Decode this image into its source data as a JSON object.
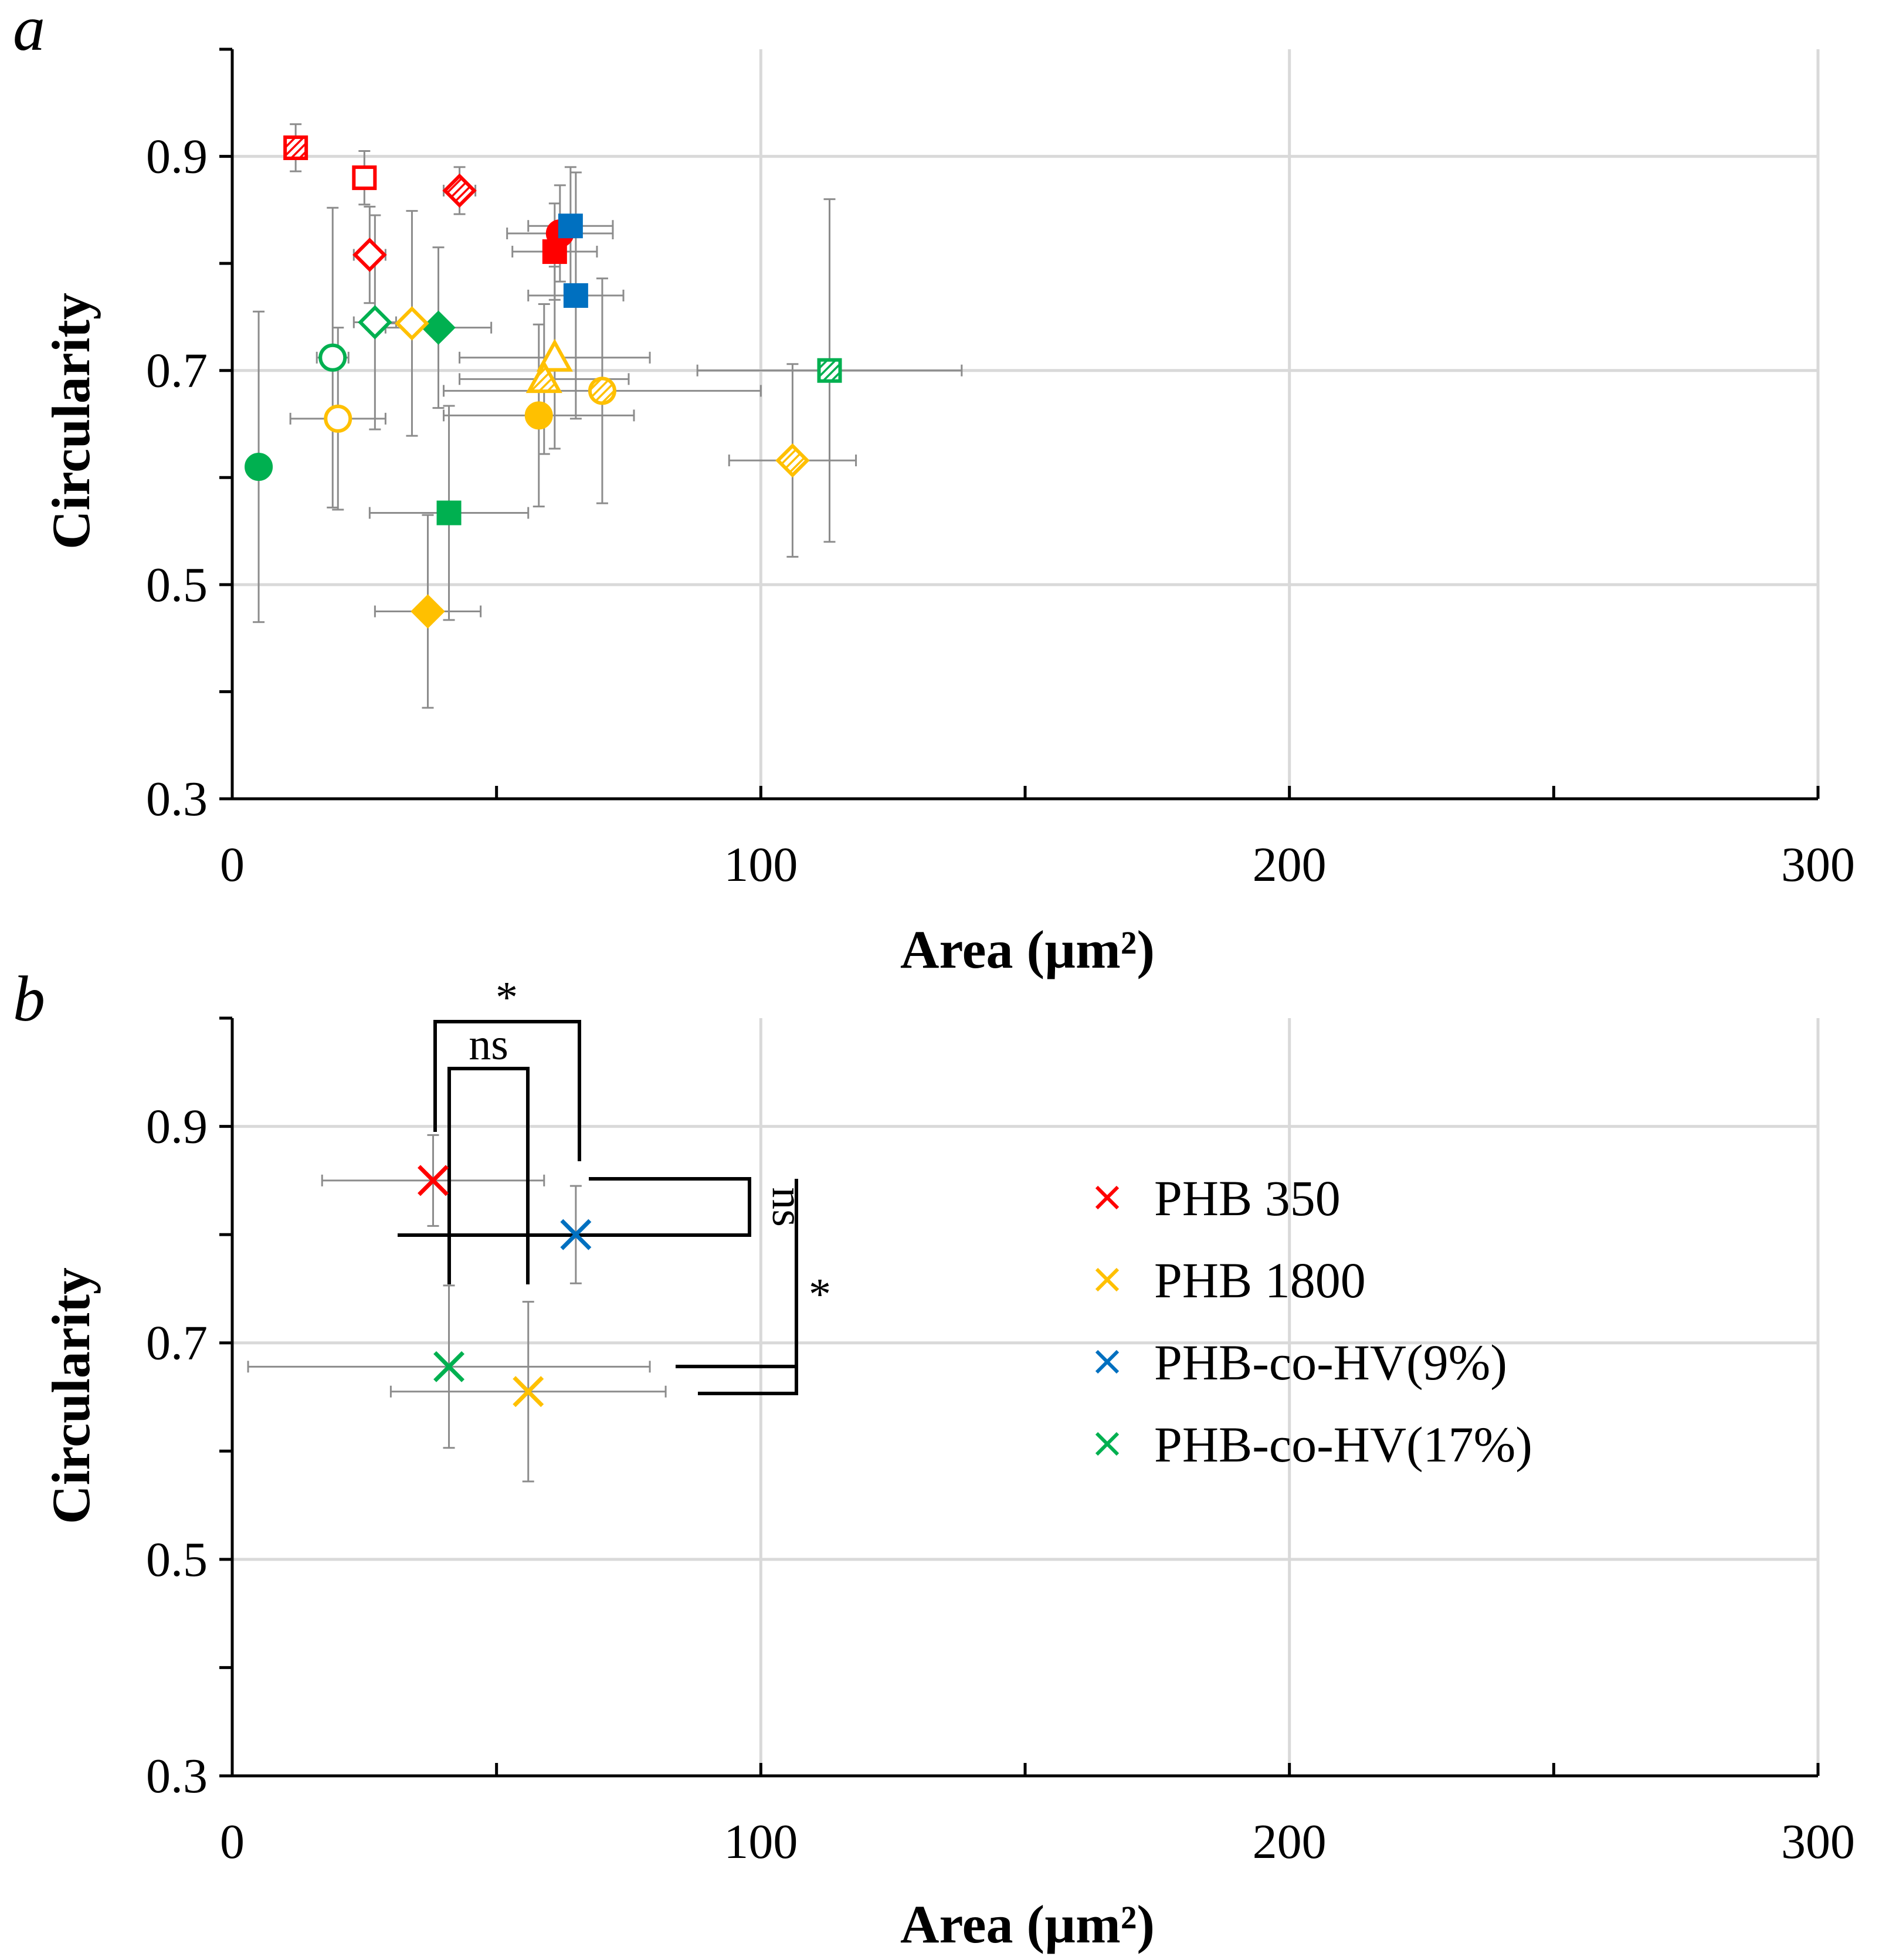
{
  "chart_data": [
    {
      "panel": "a",
      "type": "scatter",
      "xlabel": "Area (µm²)",
      "ylabel": "Circularity",
      "xlim": [
        0,
        300
      ],
      "ylim": [
        0.3,
        1.0
      ],
      "xticks": [
        0,
        100,
        200,
        300
      ],
      "yticks": [
        0.3,
        0.5,
        0.7,
        0.9
      ],
      "x_minor_step": 50,
      "y_minor_step": 0.1,
      "grid": true,
      "points": [
        {
          "color": "#ff0000",
          "marker": "square",
          "fill": "hatched",
          "x": 12,
          "y": 0.908,
          "xerr": 2,
          "yerr": 0.022
        },
        {
          "color": "#ff0000",
          "marker": "square",
          "fill": "open",
          "x": 25,
          "y": 0.88,
          "xerr": 2,
          "yerr": 0.025
        },
        {
          "color": "#ff0000",
          "marker": "diamond",
          "fill": "hatched",
          "x": 43,
          "y": 0.868,
          "xerr": 3,
          "yerr": 0.022
        },
        {
          "color": "#ff0000",
          "marker": "diamond",
          "fill": "open",
          "x": 26,
          "y": 0.808,
          "xerr": 3,
          "yerr": 0.045
        },
        {
          "color": "#ff0000",
          "marker": "circle",
          "fill": "solid",
          "x": 62,
          "y": 0.828,
          "xerr": 10,
          "yerr": 0.045
        },
        {
          "color": "#ff0000",
          "marker": "square",
          "fill": "solid",
          "x": 61,
          "y": 0.811,
          "xerr": 8,
          "yerr": 0.045
        },
        {
          "color": "#0070c0",
          "marker": "square",
          "fill": "solid",
          "x": 64,
          "y": 0.835,
          "xerr": 8,
          "yerr": 0.055
        },
        {
          "color": "#0070c0",
          "marker": "square",
          "fill": "solid",
          "x": 65,
          "y": 0.77,
          "xerr": 9,
          "yerr": 0.115
        },
        {
          "color": "#00b050",
          "marker": "diamond",
          "fill": "open",
          "x": 27,
          "y": 0.745,
          "xerr": 4,
          "yerr": 0.1
        },
        {
          "color": "#00b050",
          "marker": "circle",
          "fill": "open",
          "x": 19,
          "y": 0.712,
          "xerr": 3,
          "yerr": 0.14
        },
        {
          "color": "#00b050",
          "marker": "diamond",
          "fill": "solid",
          "x": 39,
          "y": 0.74,
          "xerr": 10,
          "yerr": 0.075
        },
        {
          "color": "#00b050",
          "marker": "circle",
          "fill": "solid",
          "x": 5,
          "y": 0.61,
          "xerr": 1,
          "yerr": 0.145
        },
        {
          "color": "#00b050",
          "marker": "square",
          "fill": "solid",
          "x": 41,
          "y": 0.567,
          "xerr": 15,
          "yerr": 0.1
        },
        {
          "color": "#00b050",
          "marker": "square",
          "fill": "hatched",
          "x": 113,
          "y": 0.7,
          "xerr": 25,
          "yerr": 0.16
        },
        {
          "color": "#ffc000",
          "marker": "diamond",
          "fill": "open",
          "x": 34,
          "y": 0.744,
          "xerr": 6,
          "yerr": 0.105
        },
        {
          "color": "#ffc000",
          "marker": "circle",
          "fill": "open",
          "x": 20,
          "y": 0.655,
          "xerr": 9,
          "yerr": 0.085
        },
        {
          "color": "#ffc000",
          "marker": "triangle",
          "fill": "open",
          "x": 61,
          "y": 0.712,
          "xerr": 18,
          "yerr": 0.085
        },
        {
          "color": "#ffc000",
          "marker": "triangle",
          "fill": "hatched",
          "x": 59,
          "y": 0.692,
          "xerr": 16,
          "yerr": 0.07
        },
        {
          "color": "#ffc000",
          "marker": "circle",
          "fill": "hatched",
          "x": 70,
          "y": 0.681,
          "xerr": 30,
          "yerr": 0.105
        },
        {
          "color": "#ffc000",
          "marker": "circle",
          "fill": "solid",
          "x": 58,
          "y": 0.658,
          "xerr": 18,
          "yerr": 0.085
        },
        {
          "color": "#ffc000",
          "marker": "diamond",
          "fill": "hatched",
          "x": 106,
          "y": 0.616,
          "xerr": 12,
          "yerr": 0.09
        },
        {
          "color": "#ffc000",
          "marker": "diamond",
          "fill": "solid",
          "x": 37,
          "y": 0.475,
          "xerr": 10,
          "yerr": 0.09
        }
      ]
    },
    {
      "panel": "b",
      "type": "scatter",
      "xlabel": "Area (µm²)",
      "ylabel": "Circularity",
      "xlim": [
        0,
        300
      ],
      "ylim": [
        0.3,
        1.0
      ],
      "xticks": [
        0,
        100,
        200,
        300
      ],
      "yticks": [
        0.3,
        0.5,
        0.7,
        0.9
      ],
      "x_minor_step": 50,
      "y_minor_step": 0.1,
      "grid": true,
      "legend_position": "center-right",
      "series": [
        {
          "name": "PHB 350",
          "color": "#ff0000",
          "x": 38,
          "y": 0.85,
          "xerr": 21,
          "yerr": 0.042
        },
        {
          "name": "PHB 1800",
          "color": "#ffc000",
          "x": 56,
          "y": 0.655,
          "xerr": 26,
          "yerr": 0.083
        },
        {
          "name": "PHB-co-HV(9%)",
          "color": "#0070c0",
          "x": 65,
          "y": 0.8,
          "xerr": 0,
          "yerr": 0.045
        },
        {
          "name": "PHB-co-HV(17%)",
          "color": "#00b050",
          "x": 41,
          "y": 0.678,
          "xerr": 38,
          "yerr": 0.075
        }
      ],
      "significance": [
        {
          "label": "*",
          "between": [
            "PHB 350",
            "PHB-co-HV(9%)"
          ]
        },
        {
          "label": "ns",
          "between": [
            "PHB-co-HV(17%)",
            "PHB 1800"
          ]
        },
        {
          "label": "ns",
          "between": [
            "PHB-co-HV(9%)",
            "PHB 350"
          ]
        },
        {
          "label": "*",
          "between": [
            "PHB-co-HV(17%)",
            "PHB 1800"
          ]
        }
      ]
    }
  ]
}
